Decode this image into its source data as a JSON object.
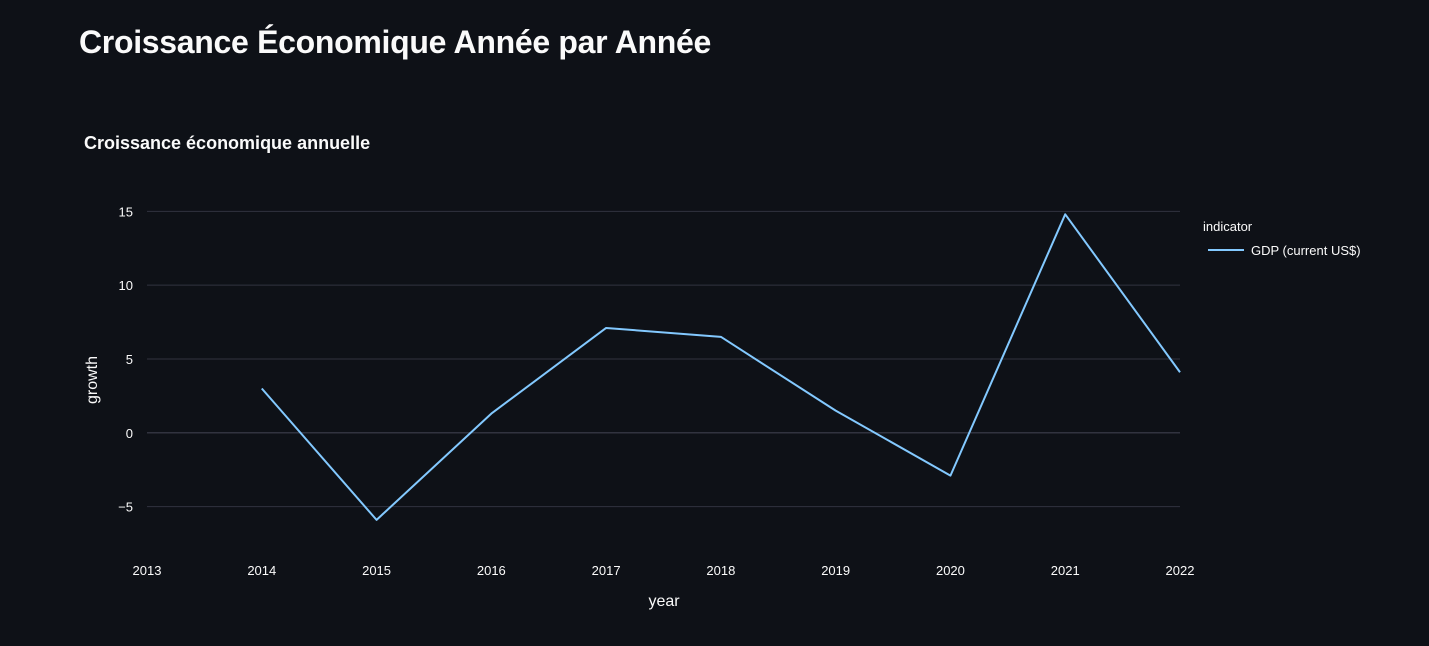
{
  "page": {
    "title": "Croissance Économique Année par Année"
  },
  "chart_data": {
    "type": "line",
    "title": "Croissance économique annuelle",
    "xlabel": "year",
    "ylabel": "growth",
    "x": [
      2014,
      2015,
      2016,
      2017,
      2018,
      2019,
      2020,
      2021,
      2022
    ],
    "x_ticks": [
      "2013",
      "2014",
      "2015",
      "2016",
      "2017",
      "2018",
      "2019",
      "2020",
      "2021",
      "2022"
    ],
    "y_ticks": [
      "15",
      "10",
      "5",
      "0",
      "−5"
    ],
    "y_tick_values": [
      15,
      10,
      5,
      0,
      -5
    ],
    "xlim": [
      2013,
      2022
    ],
    "ylim": [
      -7.6,
      17.8
    ],
    "grid": true,
    "legend_title": "indicator",
    "legend_position": "top-right",
    "series": [
      {
        "name": "GDP (current US$)",
        "color": "#83c9ff",
        "values": [
          3.0,
          -5.9,
          1.3,
          7.1,
          6.5,
          1.5,
          -2.9,
          14.8,
          4.1
        ]
      }
    ]
  },
  "colors": {
    "background": "#0e1117",
    "grid": "#31333f",
    "text": "#fafafa"
  }
}
